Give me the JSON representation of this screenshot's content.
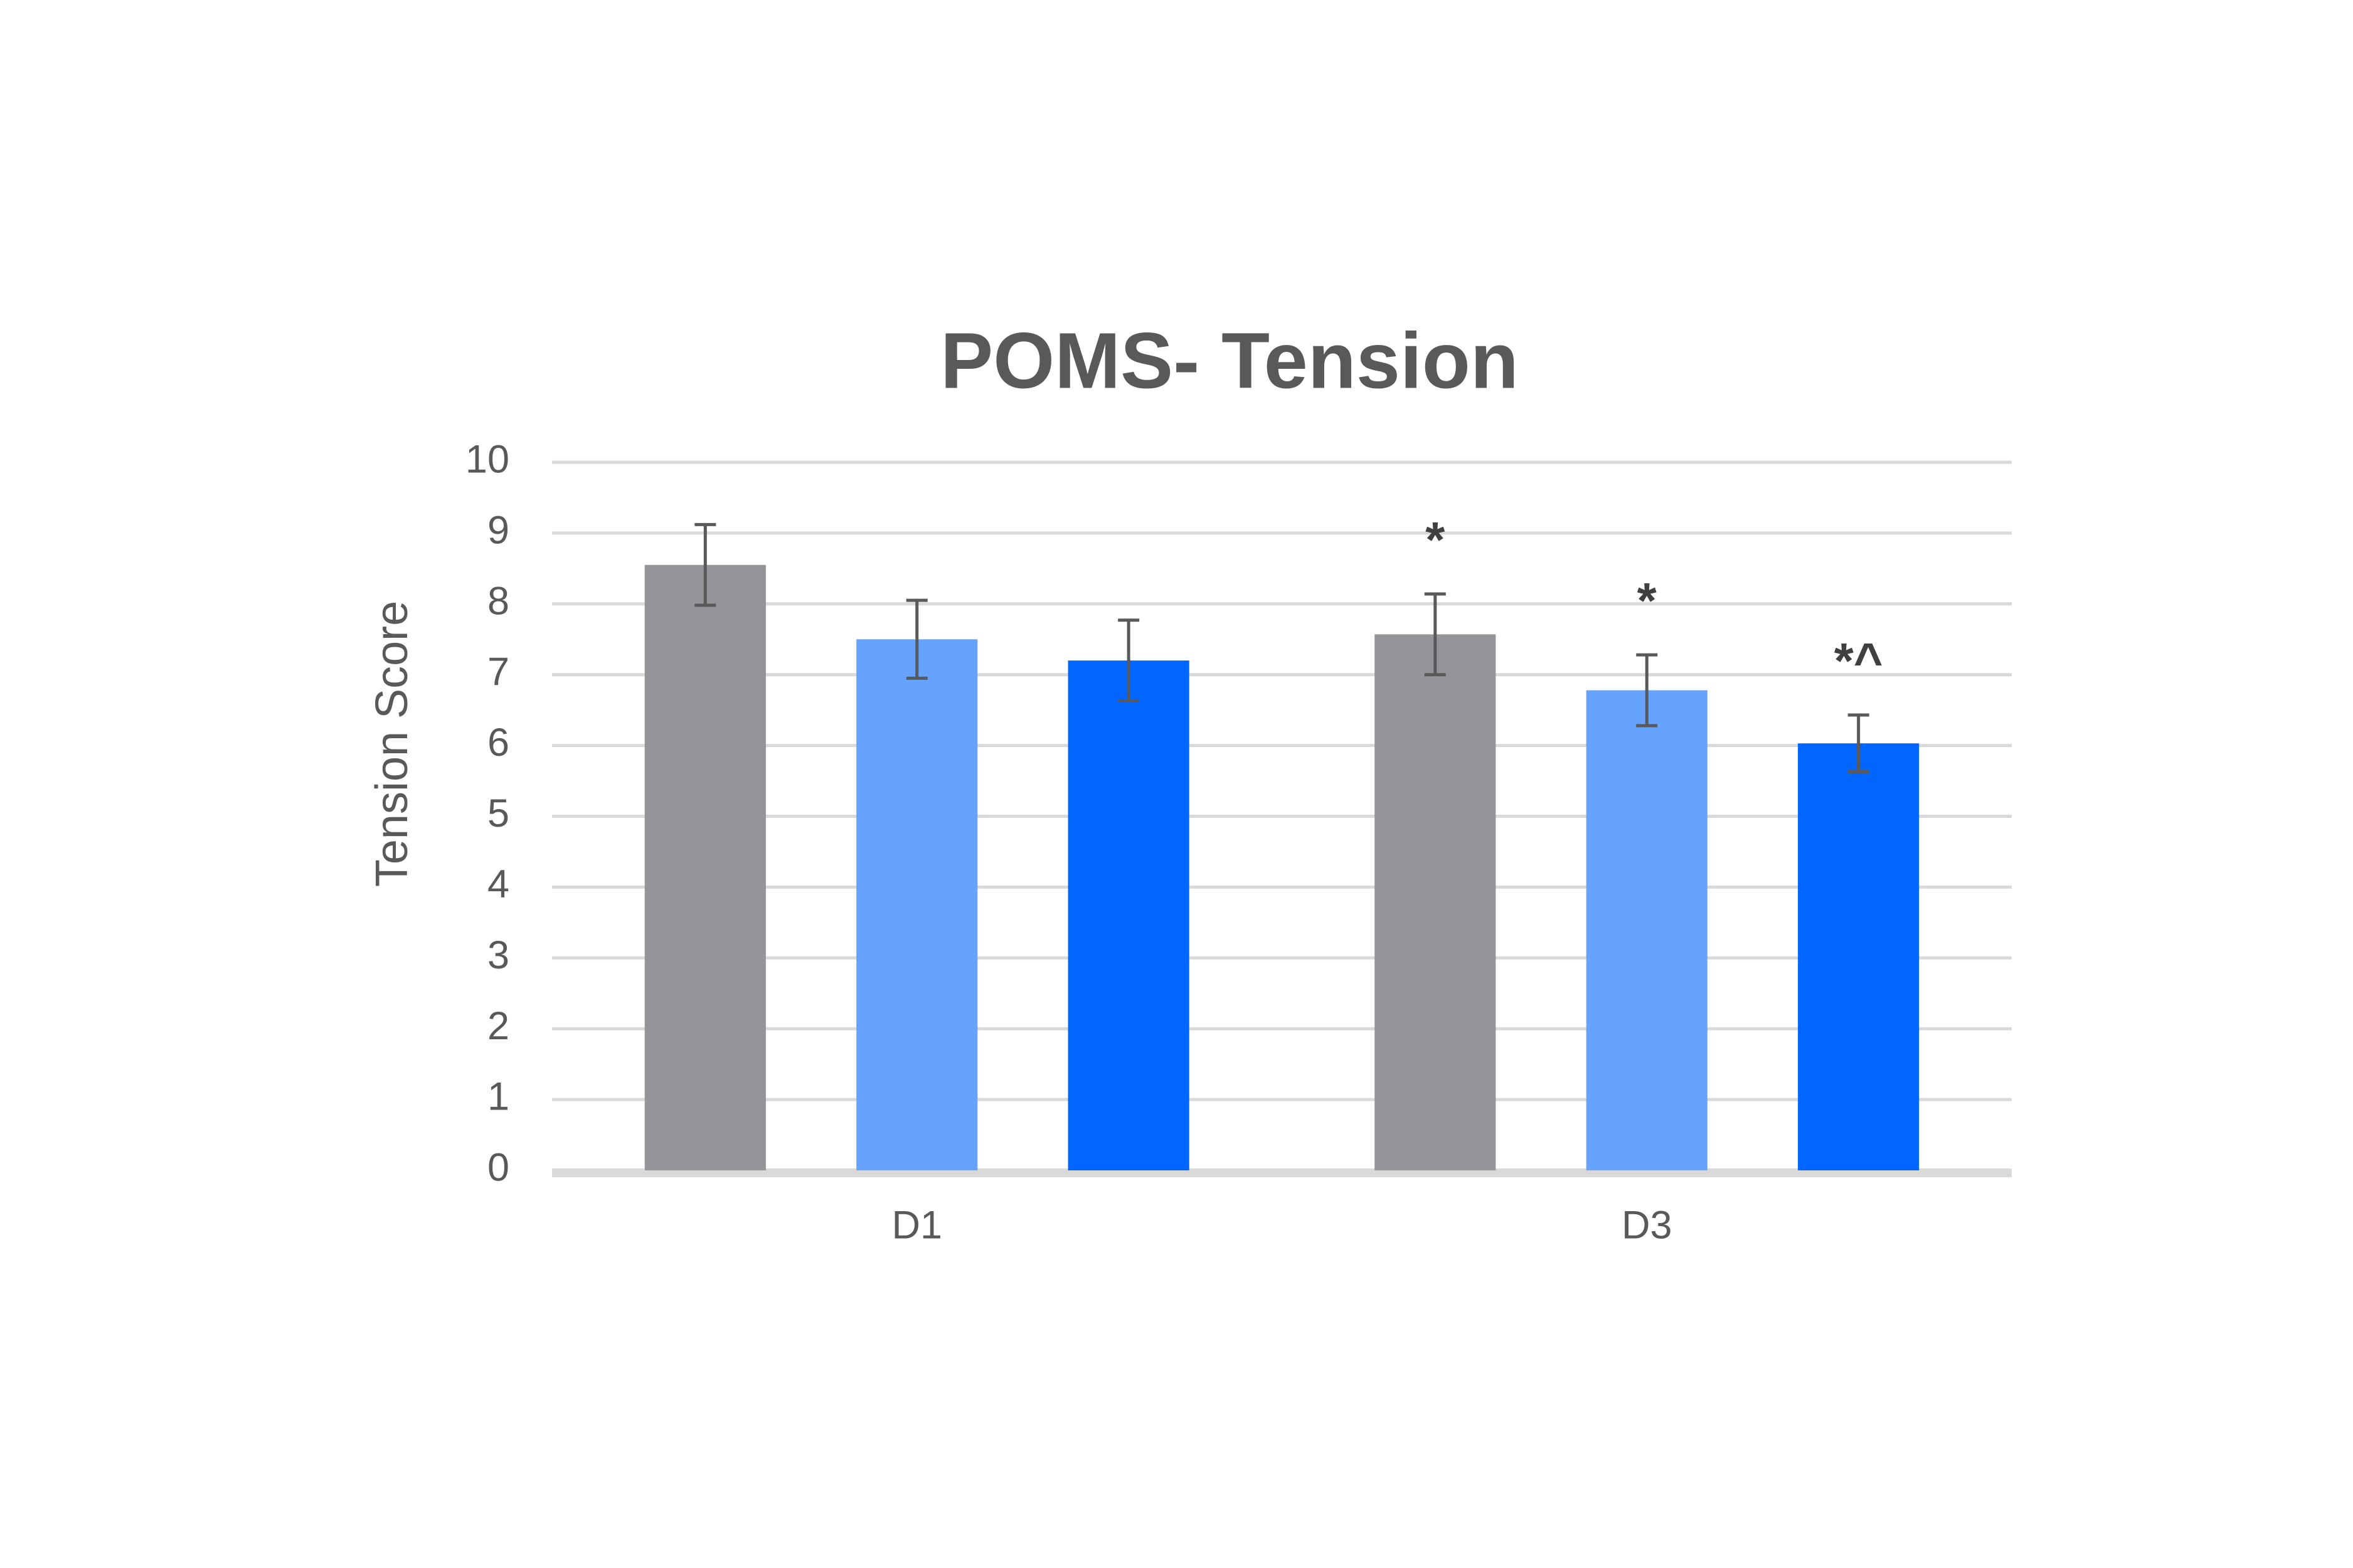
{
  "chart_data": {
    "type": "bar",
    "title": "POMS- Tension",
    "y_label": "Tension Score",
    "categories": [
      "D1",
      "D3"
    ],
    "series": [
      {
        "color": "#939598",
        "values": [
          8.55,
          7.57
        ],
        "errors": [
          0.57,
          0.57
        ],
        "annotations": [
          null,
          "*"
        ]
      },
      {
        "color": "#66a3ff",
        "values": [
          7.5,
          6.78
        ],
        "errors": [
          0.55,
          0.5
        ],
        "annotations": [
          null,
          "*"
        ]
      },
      {
        "color": "#0066ff",
        "values": [
          7.2,
          6.03
        ],
        "errors": [
          0.57,
          0.4
        ],
        "annotations": [
          null,
          "*^"
        ]
      }
    ],
    "ylim": [
      0,
      10
    ],
    "yticks": [
      0,
      1,
      2,
      3,
      4,
      5,
      6,
      7,
      8,
      9,
      10
    ],
    "grid": true
  }
}
